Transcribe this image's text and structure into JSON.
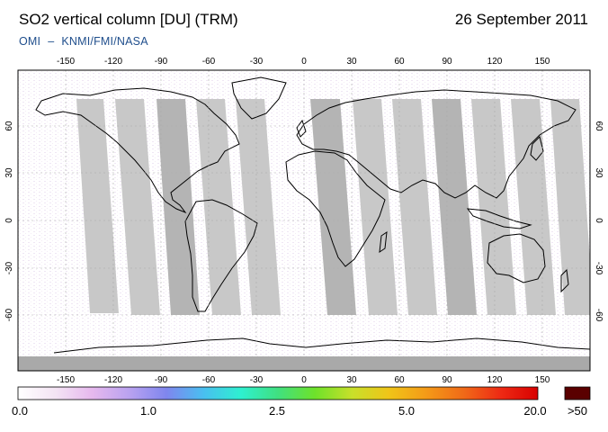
{
  "header": {
    "title": "SO2 vertical column [DU] (TRM)",
    "date": "26 September 2011",
    "credit_left": "OMI",
    "credit_dash": "–",
    "credit_right": "KNMI/FMI/NASA"
  },
  "map": {
    "projection": "equirectangular",
    "lon_ticks": [
      "-150",
      "-120",
      "-90",
      "-60",
      "-30",
      "0",
      "30",
      "60",
      "90",
      "120",
      "150"
    ],
    "lat_ticks_left": [
      "60",
      "30",
      "0",
      "-30",
      "-60"
    ],
    "lat_ticks_right": [
      "60",
      "30",
      "0",
      "-30",
      "-60"
    ],
    "no_data_color": "#c8c8c8"
  },
  "colorbar": {
    "labels": [
      "0.0",
      "1.0",
      "2.5",
      "5.0",
      "20.0",
      ">50"
    ],
    "overflow_color": "#5a0000",
    "gradient_colors": [
      "#ffffff",
      "#f4e4f4",
      "#e6b8ee",
      "#b9a2f0",
      "#7f86ee",
      "#49bff0",
      "#2ef0d0",
      "#40e080",
      "#6ee22a",
      "#c8e02a",
      "#f0c418",
      "#f49a18",
      "#f06a18",
      "#ee2a14",
      "#d80000"
    ]
  }
}
